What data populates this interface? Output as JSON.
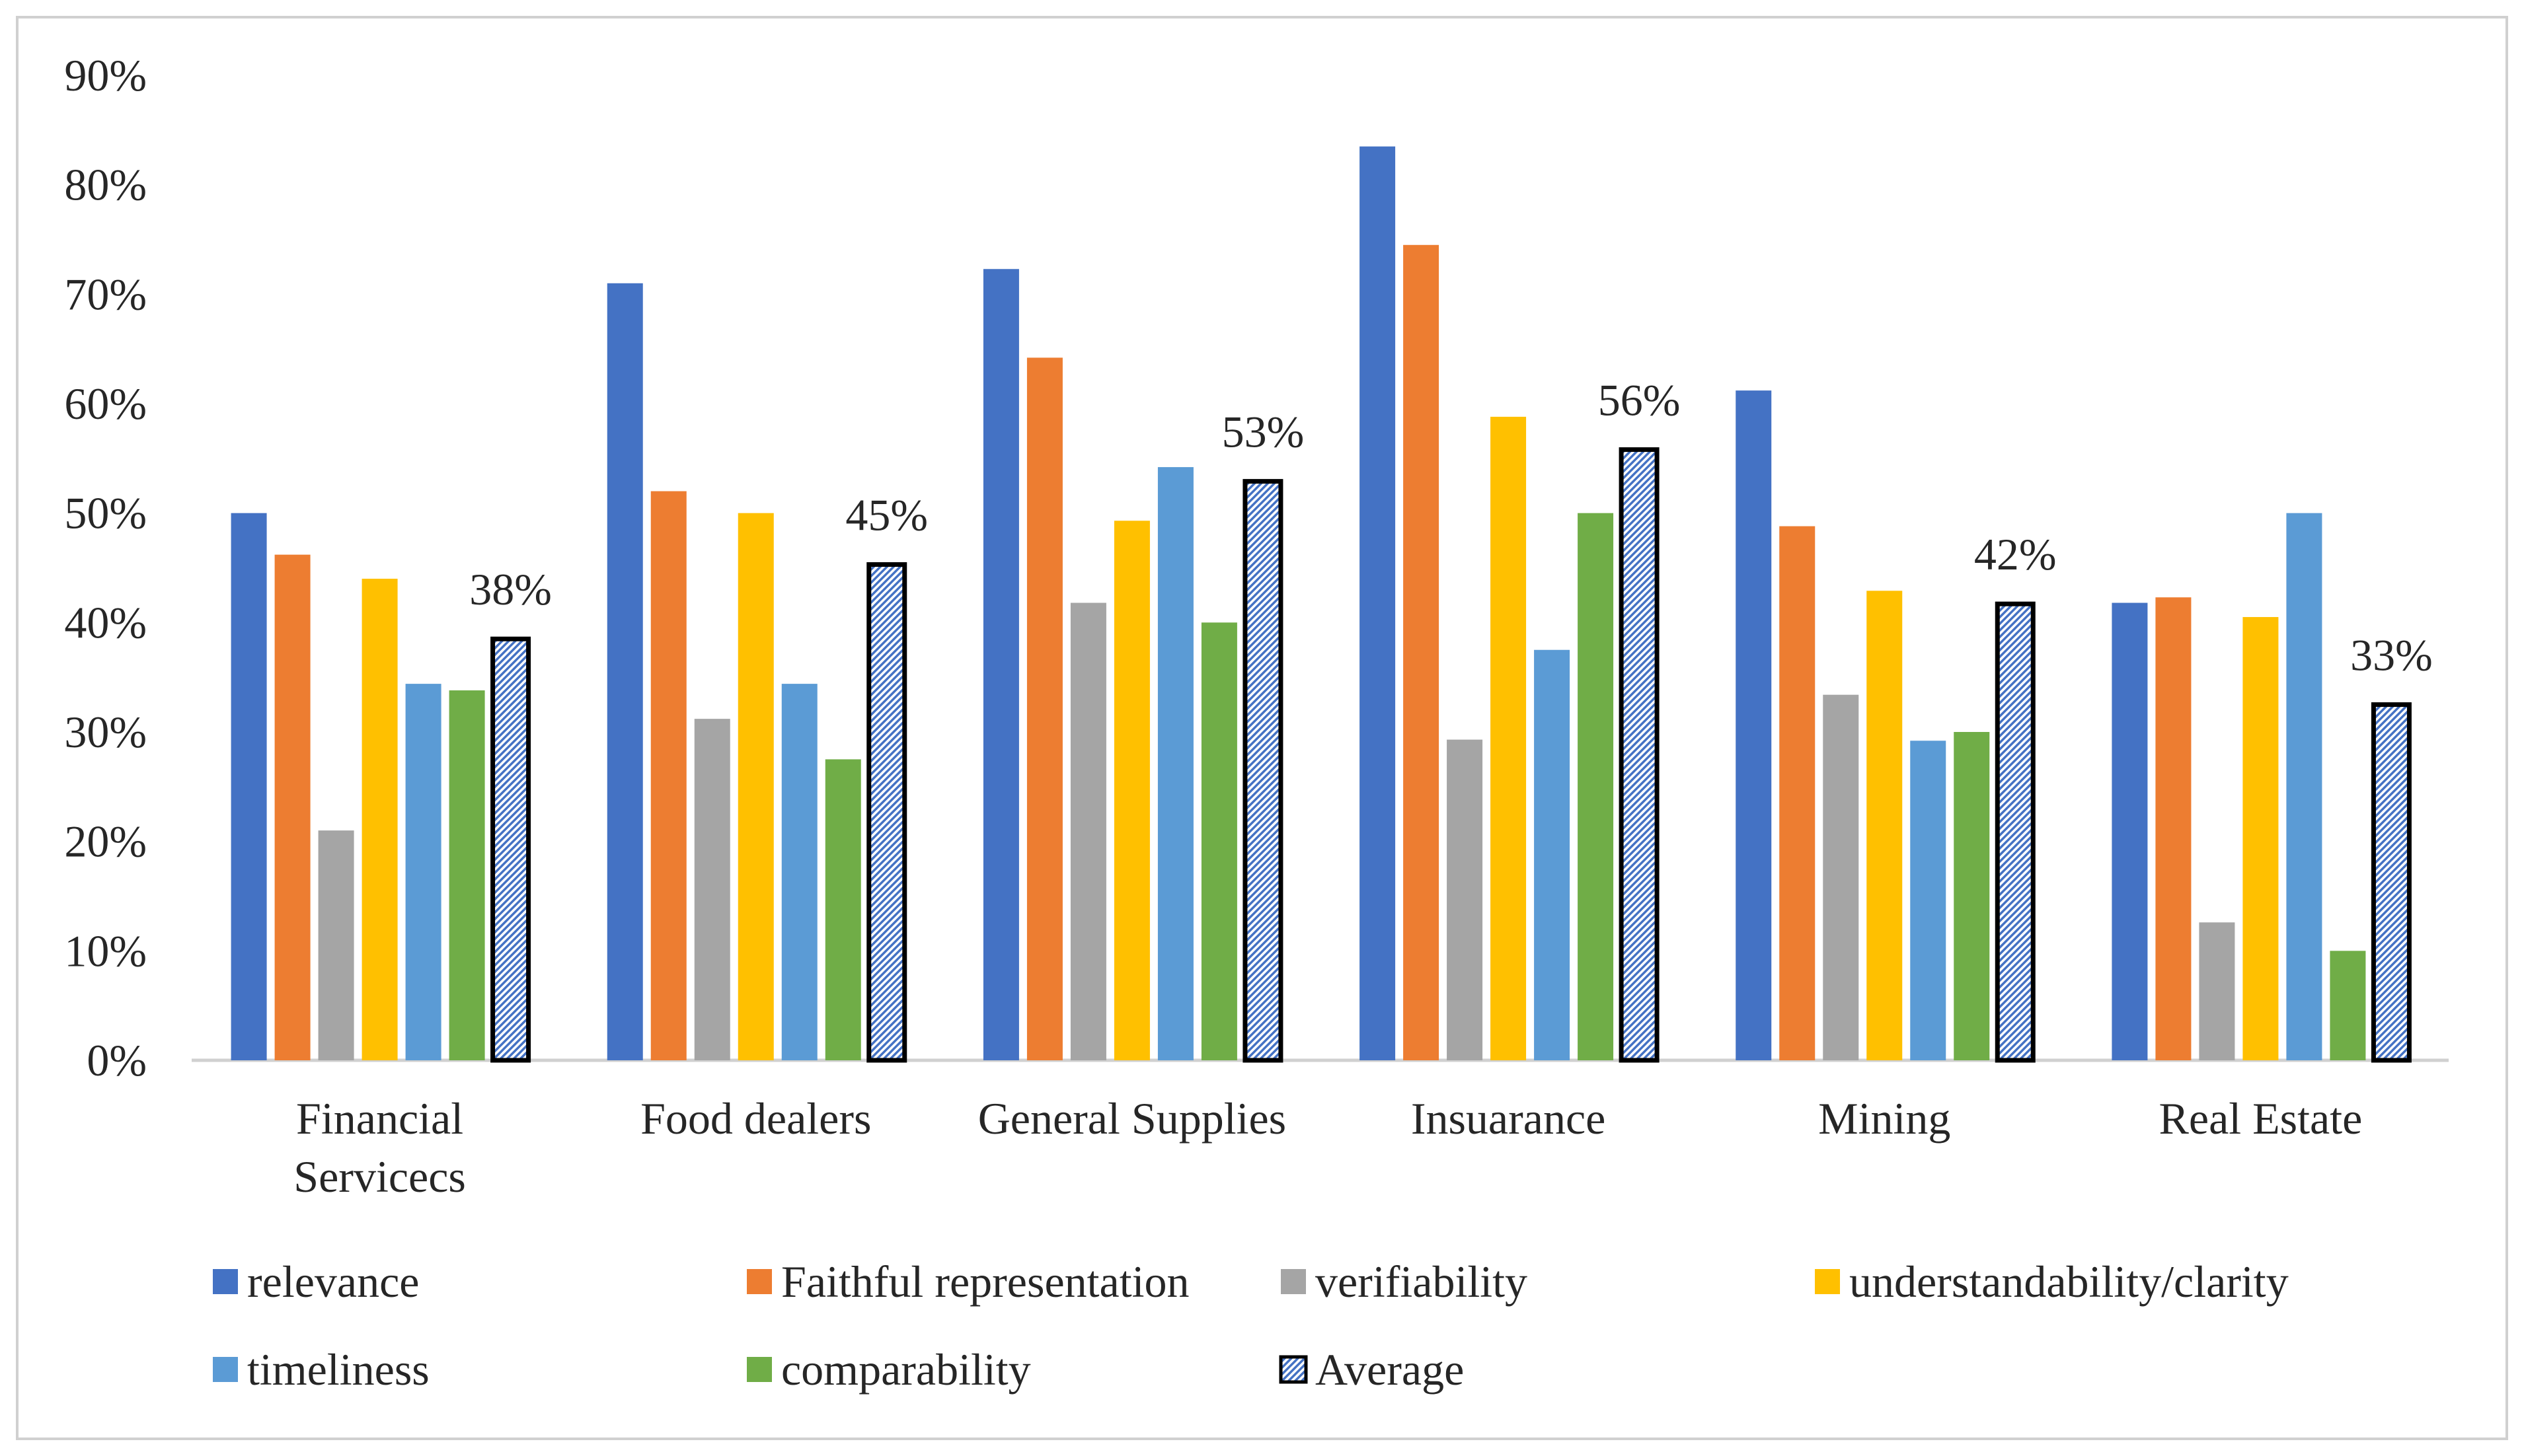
{
  "chart_data": {
    "type": "bar",
    "categories": [
      [
        "Financial",
        "Servicecs"
      ],
      [
        "Food dealers"
      ],
      [
        "General Supplies"
      ],
      [
        "Insuarance"
      ],
      [
        "Mining"
      ],
      [
        "Real Estate"
      ]
    ],
    "series": [
      {
        "name": "relevance",
        "color": "#4472C4",
        "pattern": false,
        "values": [
          50,
          71,
          72.3,
          83.5,
          61.2,
          41.8
        ]
      },
      {
        "name": "Faithful representation",
        "color": "#ED7D31",
        "pattern": false,
        "values": [
          46.2,
          52,
          64.2,
          74.5,
          48.8,
          42.3
        ]
      },
      {
        "name": "verifiability",
        "color": "#A5A5A5",
        "pattern": false,
        "values": [
          21,
          31.2,
          41.8,
          29.3,
          33.4,
          12.6
        ]
      },
      {
        "name": "understandability/clarity",
        "color": "#FFC000",
        "pattern": false,
        "values": [
          44,
          50,
          49.3,
          58.8,
          42.9,
          40.5
        ]
      },
      {
        "name": "timeliness",
        "color": "#5B9BD5",
        "pattern": false,
        "values": [
          34.4,
          34.4,
          54.2,
          37.5,
          29.2,
          50
        ]
      },
      {
        "name": "comparability",
        "color": "#70AD47",
        "pattern": false,
        "values": [
          33.8,
          27.5,
          40,
          50,
          30,
          10
        ]
      },
      {
        "name": "Average",
        "color": "#4472C4",
        "pattern": true,
        "values": [
          38.5,
          45.3,
          52.9,
          55.8,
          41.7,
          32.5
        ]
      }
    ],
    "data_labels": {
      "series": "Average",
      "labels": [
        "38%",
        "45%",
        "53%",
        "56%",
        "42%",
        "33%"
      ]
    },
    "ylim": [
      0,
      90
    ],
    "yticks": [
      "0%",
      "10%",
      "20%",
      "30%",
      "40%",
      "50%",
      "60%",
      "70%",
      "80%",
      "90%"
    ],
    "ytick_values": [
      0,
      10,
      20,
      30,
      40,
      50,
      60,
      70,
      80,
      90
    ],
    "title": "",
    "xlabel": "",
    "ylabel": "",
    "grid": false,
    "legend_position": "bottom"
  }
}
